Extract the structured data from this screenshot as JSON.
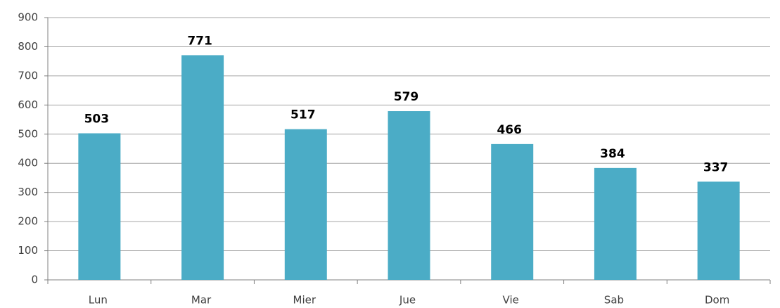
{
  "chart_data": {
    "type": "bar",
    "categories": [
      "Lun",
      "Mar",
      "Mier",
      "Jue",
      "Vie",
      "Sab",
      "Dom"
    ],
    "values": [
      503,
      771,
      517,
      579,
      466,
      384,
      337
    ],
    "color": "#4bacc6",
    "ylim": [
      0,
      900
    ],
    "yticks": [
      0,
      100,
      200,
      300,
      400,
      500,
      600,
      700,
      800,
      900
    ],
    "grid": true
  }
}
